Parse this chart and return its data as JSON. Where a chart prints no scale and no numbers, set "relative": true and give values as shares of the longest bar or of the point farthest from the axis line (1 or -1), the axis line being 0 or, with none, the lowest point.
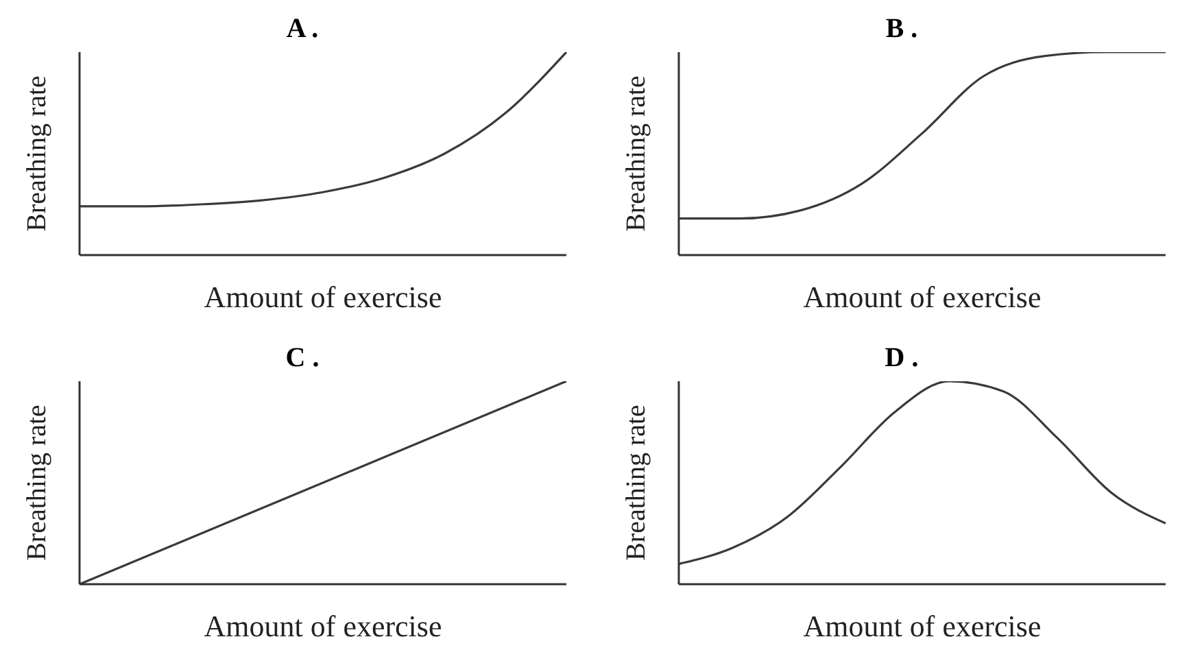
{
  "chart_data": [
    {
      "type": "line",
      "title": "A .",
      "xlabel": "Amount of exercise",
      "ylabel": "Breathing rate",
      "relative": true,
      "categories": [
        null,
        null,
        null,
        null,
        null,
        null,
        null,
        null,
        null
      ],
      "series": [
        {
          "color": "#3a3a3a",
          "values": [
            0.24,
            0.24,
            0.25,
            0.27,
            0.31,
            0.38,
            0.5,
            0.7,
            1
          ]
        }
      ]
    },
    {
      "type": "line",
      "title": "B .",
      "xlabel": "Amount of exercise",
      "ylabel": "Breathing rate",
      "relative": true,
      "categories": [
        null,
        null,
        null,
        null,
        null,
        null,
        null,
        null,
        null
      ],
      "series": [
        {
          "color": "#3a3a3a",
          "values": [
            0.18,
            0.18,
            0.22,
            0.35,
            0.6,
            0.88,
            0.98,
            1,
            1
          ]
        }
      ]
    },
    {
      "type": "line",
      "title": "C .",
      "xlabel": "Amount of exercise",
      "ylabel": "Breathing rate",
      "relative": true,
      "categories": [
        null,
        null,
        null,
        null,
        null,
        null,
        null,
        null,
        null
      ],
      "series": [
        {
          "color": "#3a3a3a",
          "values": [
            0,
            0.125,
            0.25,
            0.375,
            0.5,
            0.625,
            0.75,
            0.875,
            1
          ]
        }
      ]
    },
    {
      "type": "line",
      "title": "D .",
      "xlabel": "Amount of exercise",
      "ylabel": "Breathing rate",
      "relative": true,
      "categories": [
        null,
        null,
        null,
        null,
        null,
        null,
        null,
        null,
        null,
        null
      ],
      "series": [
        {
          "color": "#3a3a3a",
          "values": [
            0.1,
            0.18,
            0.33,
            0.58,
            0.85,
            1,
            0.95,
            0.72,
            0.45,
            0.3
          ]
        }
      ]
    }
  ]
}
